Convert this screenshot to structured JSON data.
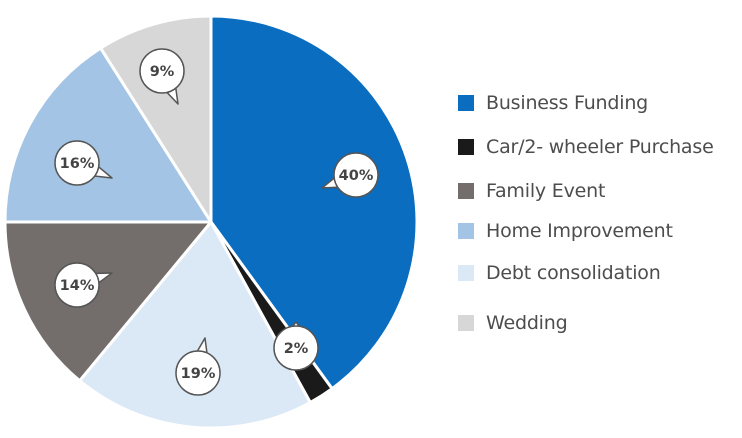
{
  "chart_data": {
    "type": "pie",
    "categories": [
      "Business Funding",
      "Car/2- wheeler Purchase",
      "Family Event",
      "Home Improvement",
      "Debt consolidation",
      "Wedding"
    ],
    "values": [
      40,
      2,
      14,
      16,
      19,
      9
    ],
    "labels": [
      "40%",
      "2%",
      "14%",
      "16%",
      "19%",
      "9%"
    ],
    "colors": {
      "Business Funding": "#0a6dbf",
      "Car/2- wheeler Purchase": "#1a1a1a",
      "Family Event": "#736e6c",
      "Home Improvement": "#a3c4e4",
      "Debt consolidation": "#dbe8f5",
      "Wedding": "#d7d7d7"
    },
    "legend_placement": "right"
  }
}
